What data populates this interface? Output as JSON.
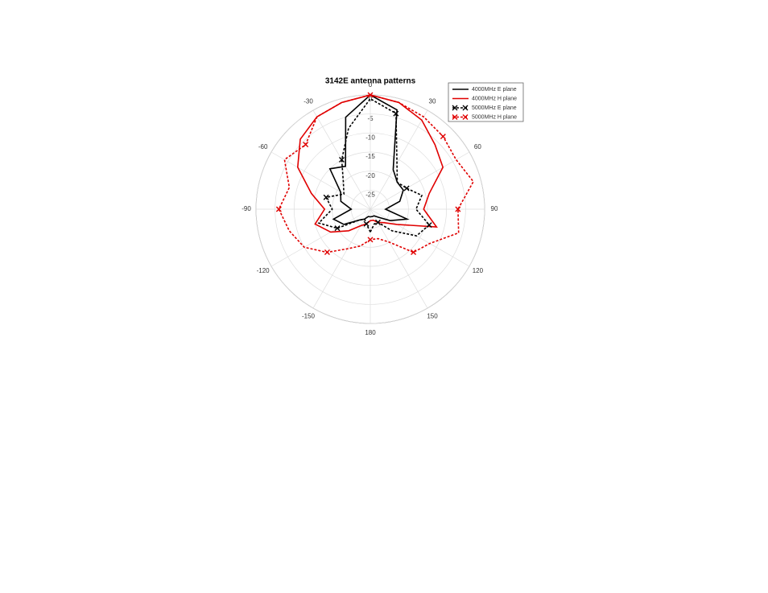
{
  "chart_data": {
    "type": "polar",
    "title": "3142E antenna patterns",
    "theta": [
      -180,
      -165,
      -150,
      -135,
      -120,
      -105,
      -90,
      -75,
      -60,
      -45,
      -30,
      -15,
      0,
      15,
      30,
      45,
      60,
      75,
      90,
      105,
      120,
      135,
      150,
      165
    ],
    "thetaticks": [
      0,
      30,
      60,
      90,
      120,
      150,
      180,
      -150,
      -120,
      -90,
      -60,
      -30
    ],
    "rlim": [
      -30,
      0
    ],
    "rticks": [
      -25,
      -20,
      -15,
      -10,
      -5,
      0
    ],
    "grid": true,
    "legend": "upper right",
    "series": [
      {
        "name": "4000MHz E plane",
        "color": "#000000",
        "linestyle": "solid",
        "marker": "none",
        "values": [
          -28,
          -28,
          -27,
          -26,
          -22,
          -20,
          -25,
          -22,
          -21,
          -15,
          -17,
          -5,
          0,
          -3,
          -18,
          -20,
          -20,
          -22,
          -26,
          -20,
          -24,
          -27,
          -28,
          -28
        ]
      },
      {
        "name": "4000MHz H plane",
        "color": "#e00000",
        "linestyle": "solid",
        "marker": "none",
        "values": [
          -27,
          -26,
          -25,
          -22,
          -18,
          -15,
          -18,
          -14,
          -8,
          -4,
          -2,
          -1,
          0,
          -1,
          -3,
          -6,
          -8,
          -14,
          -16,
          -12,
          -22,
          -25,
          -26,
          -27
        ]
      },
      {
        "name": "5000MHz E plane",
        "color": "#000000",
        "linestyle": "dashed",
        "marker": "x",
        "values": [
          -24,
          -26,
          -27,
          -26,
          -20,
          -16,
          -20,
          -18,
          -22,
          -20,
          -15,
          -8,
          -1,
          -4,
          -16,
          -20,
          -19,
          -16,
          -18,
          -14,
          -16,
          -22,
          -26,
          -26
        ]
      },
      {
        "name": "5000MHz H plane",
        "color": "#e00000",
        "linestyle": "dashed",
        "marker": "x",
        "values": [
          -22,
          -20,
          -18,
          -14,
          -10,
          -8,
          -6,
          -8,
          -4,
          -6,
          -2,
          -1,
          0,
          -1,
          -2,
          -3,
          -4,
          -2,
          -7,
          -6,
          -12,
          -14,
          -20,
          -22
        ]
      }
    ]
  }
}
